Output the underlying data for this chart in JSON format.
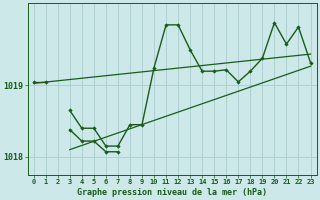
{
  "title": "Graphe pression niveau de la mer (hPa)",
  "bg_color": "#cce8e8",
  "grid_color": "#aacccc",
  "line_color": "#1a5c1a",
  "x_values": [
    0,
    1,
    2,
    3,
    4,
    5,
    6,
    7,
    8,
    9,
    10,
    11,
    12,
    13,
    14,
    15,
    16,
    17,
    18,
    19,
    20,
    21,
    22,
    23
  ],
  "y_main": [
    1019.05,
    1019.05,
    null,
    1018.65,
    1018.4,
    1018.4,
    1018.15,
    1018.15,
    1018.45,
    1018.45,
    1019.25,
    1019.85,
    1019.85,
    1019.5,
    1019.2,
    1019.2,
    1019.22,
    1019.05,
    1019.2,
    1019.38,
    1019.88,
    1019.58,
    1019.82,
    1019.32
  ],
  "y_low": [
    null,
    null,
    null,
    1018.38,
    1018.22,
    1018.22,
    1018.07,
    1018.07,
    null,
    null,
    null,
    null,
    null,
    null,
    null,
    null,
    null,
    null,
    null,
    null,
    null,
    null,
    null,
    null
  ],
  "trend1_x": [
    0,
    23
  ],
  "trend1_y": [
    1019.03,
    1019.44
  ],
  "trend2_x": [
    3,
    23
  ],
  "trend2_y": [
    1018.1,
    1019.27
  ],
  "ylim": [
    1017.75,
    1020.15
  ],
  "yticks": [
    1018,
    1019
  ],
  "xlim": [
    -0.5,
    23.5
  ],
  "marker_size": 2.2
}
